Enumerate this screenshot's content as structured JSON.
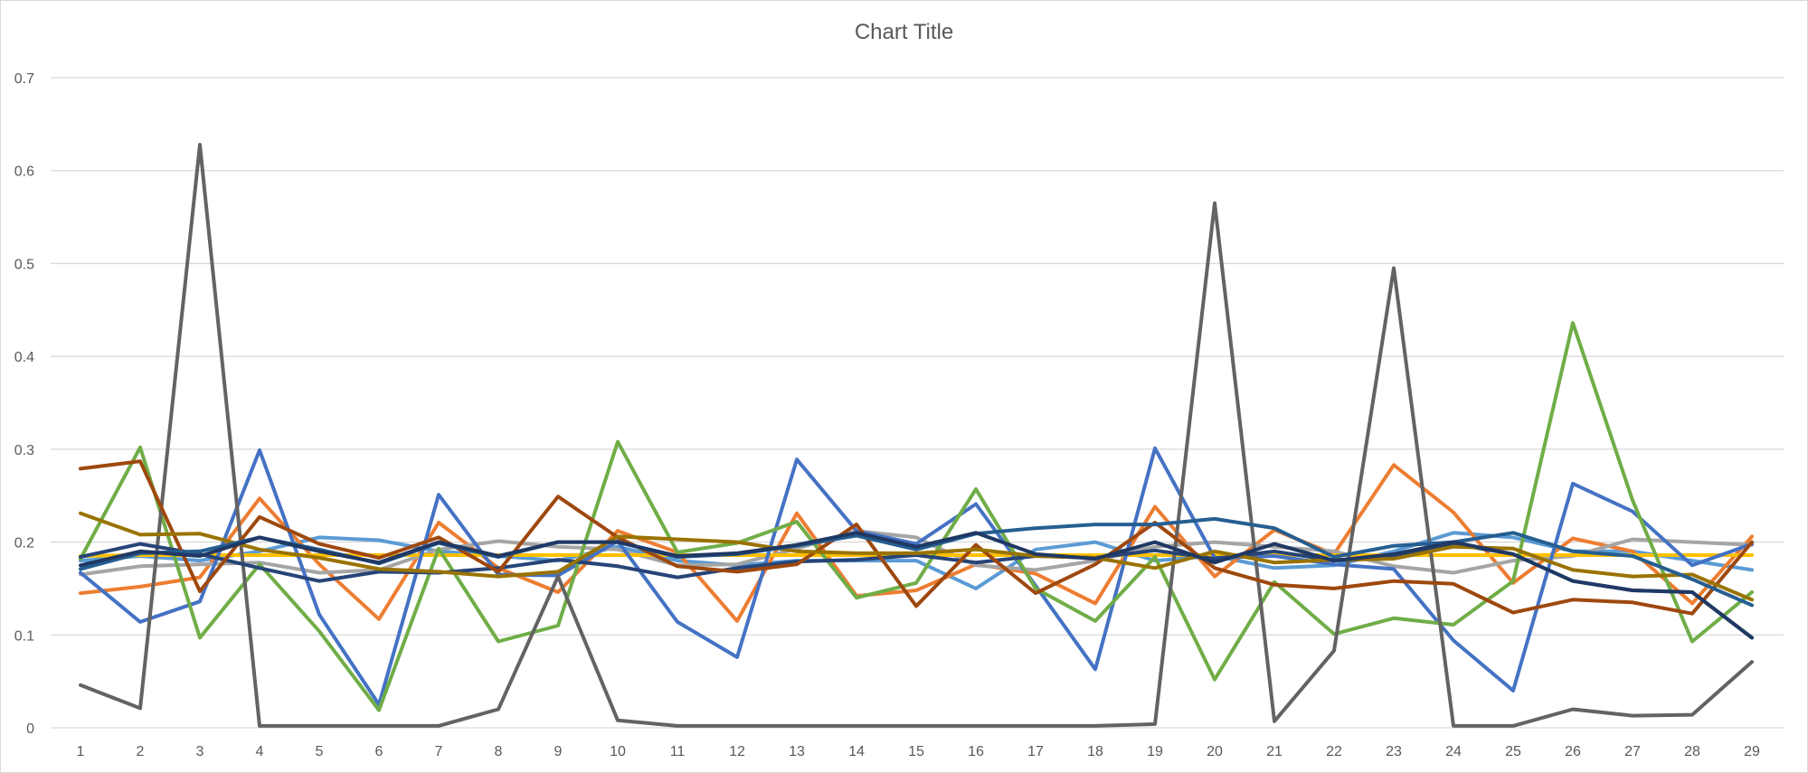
{
  "chart_data": {
    "type": "line",
    "title": "Chart Title",
    "xlabel": "",
    "ylabel": "",
    "ylim": [
      0,
      0.7
    ],
    "y_ticks": [
      "0",
      "0.1",
      "0.2",
      "0.3",
      "0.4",
      "0.5",
      "0.6",
      "0.7"
    ],
    "grid": true,
    "legend": "none",
    "categories": [
      "1",
      "2",
      "3",
      "4",
      "5",
      "6",
      "7",
      "8",
      "9",
      "10",
      "11",
      "12",
      "13",
      "14",
      "15",
      "16",
      "17",
      "18",
      "19",
      "20",
      "21",
      "22",
      "23",
      "24",
      "25",
      "26",
      "27",
      "28",
      "29"
    ],
    "series": [
      {
        "color": "#5b9bd5",
        "values": [
          0.18,
          0.185,
          0.18,
          0.19,
          0.205,
          0.202,
          0.19,
          0.185,
          0.18,
          0.195,
          0.18,
          0.175,
          0.18,
          0.18,
          0.18,
          0.15,
          0.192,
          0.2,
          0.18,
          0.185,
          0.172,
          0.175,
          0.19,
          0.21,
          0.205,
          0.19,
          0.19,
          0.18,
          0.17
        ]
      },
      {
        "color": "#ed7d31",
        "values": [
          0.145,
          0.152,
          0.162,
          0.247,
          0.176,
          0.117,
          0.221,
          0.172,
          0.146,
          0.212,
          0.189,
          0.115,
          0.231,
          0.142,
          0.148,
          0.176,
          0.166,
          0.134,
          0.238,
          0.163,
          0.213,
          0.187,
          0.283,
          0.232,
          0.156,
          0.204,
          0.19,
          0.134,
          0.206
        ]
      },
      {
        "color": "#a5a5a5",
        "values": [
          0.165,
          0.174,
          0.176,
          0.178,
          0.167,
          0.17,
          0.192,
          0.201,
          0.195,
          0.192,
          0.175,
          0.176,
          0.193,
          0.212,
          0.205,
          0.175,
          0.17,
          0.18,
          0.195,
          0.2,
          0.195,
          0.19,
          0.174,
          0.167,
          0.18,
          0.185,
          0.203,
          0.2,
          0.197
        ]
      },
      {
        "color": "#ffc000",
        "values": [
          0.185,
          0.186,
          0.186,
          0.186,
          0.186,
          0.186,
          0.186,
          0.186,
          0.186,
          0.186,
          0.186,
          0.186,
          0.186,
          0.186,
          0.186,
          0.186,
          0.186,
          0.186,
          0.186,
          0.186,
          0.186,
          0.186,
          0.186,
          0.186,
          0.186,
          0.186,
          0.186,
          0.186,
          0.186
        ]
      },
      {
        "color": "#4472c4",
        "values": [
          0.167,
          0.114,
          0.136,
          0.299,
          0.122,
          0.025,
          0.251,
          0.165,
          0.164,
          0.201,
          0.114,
          0.076,
          0.289,
          0.212,
          0.198,
          0.241,
          0.153,
          0.063,
          0.301,
          0.183,
          0.185,
          0.176,
          0.171,
          0.094,
          0.04,
          0.263,
          0.233,
          0.175,
          0.198
        ]
      },
      {
        "color": "#70ad47",
        "values": [
          0.182,
          0.302,
          0.097,
          0.176,
          0.104,
          0.019,
          0.193,
          0.093,
          0.11,
          0.308,
          0.189,
          0.199,
          0.222,
          0.14,
          0.156,
          0.257,
          0.15,
          0.115,
          0.184,
          0.052,
          0.157,
          0.101,
          0.118,
          0.111,
          0.158,
          0.436,
          0.245,
          0.093,
          0.146
        ]
      },
      {
        "color": "#636363",
        "values": [
          0.046,
          0.021,
          0.628,
          0.002,
          0.002,
          0.002,
          0.002,
          0.02,
          0.163,
          0.008,
          0.002,
          0.002,
          0.002,
          0.002,
          0.002,
          0.002,
          0.002,
          0.002,
          0.004,
          0.565,
          0.007,
          0.083,
          0.495,
          0.002,
          0.002,
          0.02,
          0.013,
          0.014,
          0.071
        ]
      },
      {
        "color": "#264478",
        "values": [
          0.184,
          0.198,
          0.187,
          0.172,
          0.158,
          0.168,
          0.167,
          0.172,
          0.181,
          0.174,
          0.162,
          0.172,
          0.179,
          0.181,
          0.186,
          0.178,
          0.185,
          0.183,
          0.191,
          0.182,
          0.19,
          0.18,
          0.183,
          0.198,
          0.187,
          0.158,
          0.148,
          0.146,
          0.097
        ]
      },
      {
        "color": "#9e480e",
        "values": [
          0.279,
          0.287,
          0.147,
          0.227,
          0.198,
          0.183,
          0.205,
          0.168,
          0.249,
          0.205,
          0.174,
          0.168,
          0.176,
          0.219,
          0.131,
          0.197,
          0.145,
          0.176,
          0.221,
          0.172,
          0.154,
          0.15,
          0.158,
          0.155,
          0.124,
          0.138,
          0.135,
          0.123,
          0.2
        ]
      },
      {
        "color": "#997300",
        "values": [
          0.231,
          0.208,
          0.209,
          0.192,
          0.183,
          0.171,
          0.168,
          0.163,
          0.168,
          0.206,
          0.203,
          0.2,
          0.19,
          0.188,
          0.188,
          0.192,
          0.185,
          0.183,
          0.172,
          0.19,
          0.178,
          0.181,
          0.182,
          0.195,
          0.193,
          0.17,
          0.163,
          0.165,
          0.138
        ]
      },
      {
        "color": "#255e91",
        "values": [
          0.171,
          0.188,
          0.19,
          0.205,
          0.192,
          0.177,
          0.199,
          0.184,
          0.2,
          0.2,
          0.184,
          0.187,
          0.196,
          0.207,
          0.192,
          0.209,
          0.215,
          0.219,
          0.219,
          0.225,
          0.215,
          0.184,
          0.196,
          0.2,
          0.21,
          0.19,
          0.185,
          0.16,
          0.132
        ]
      },
      {
        "color": "#1f3864",
        "values": [
          0.175,
          0.19,
          0.185,
          0.205,
          0.19,
          0.178,
          0.2,
          0.185,
          0.2,
          0.2,
          0.185,
          0.188,
          0.197,
          0.21,
          0.195,
          0.21,
          0.187,
          0.182,
          0.2,
          0.178,
          0.198,
          0.18,
          0.187,
          0.2,
          0.187,
          0.158,
          0.148,
          0.146,
          0.097
        ]
      }
    ]
  }
}
